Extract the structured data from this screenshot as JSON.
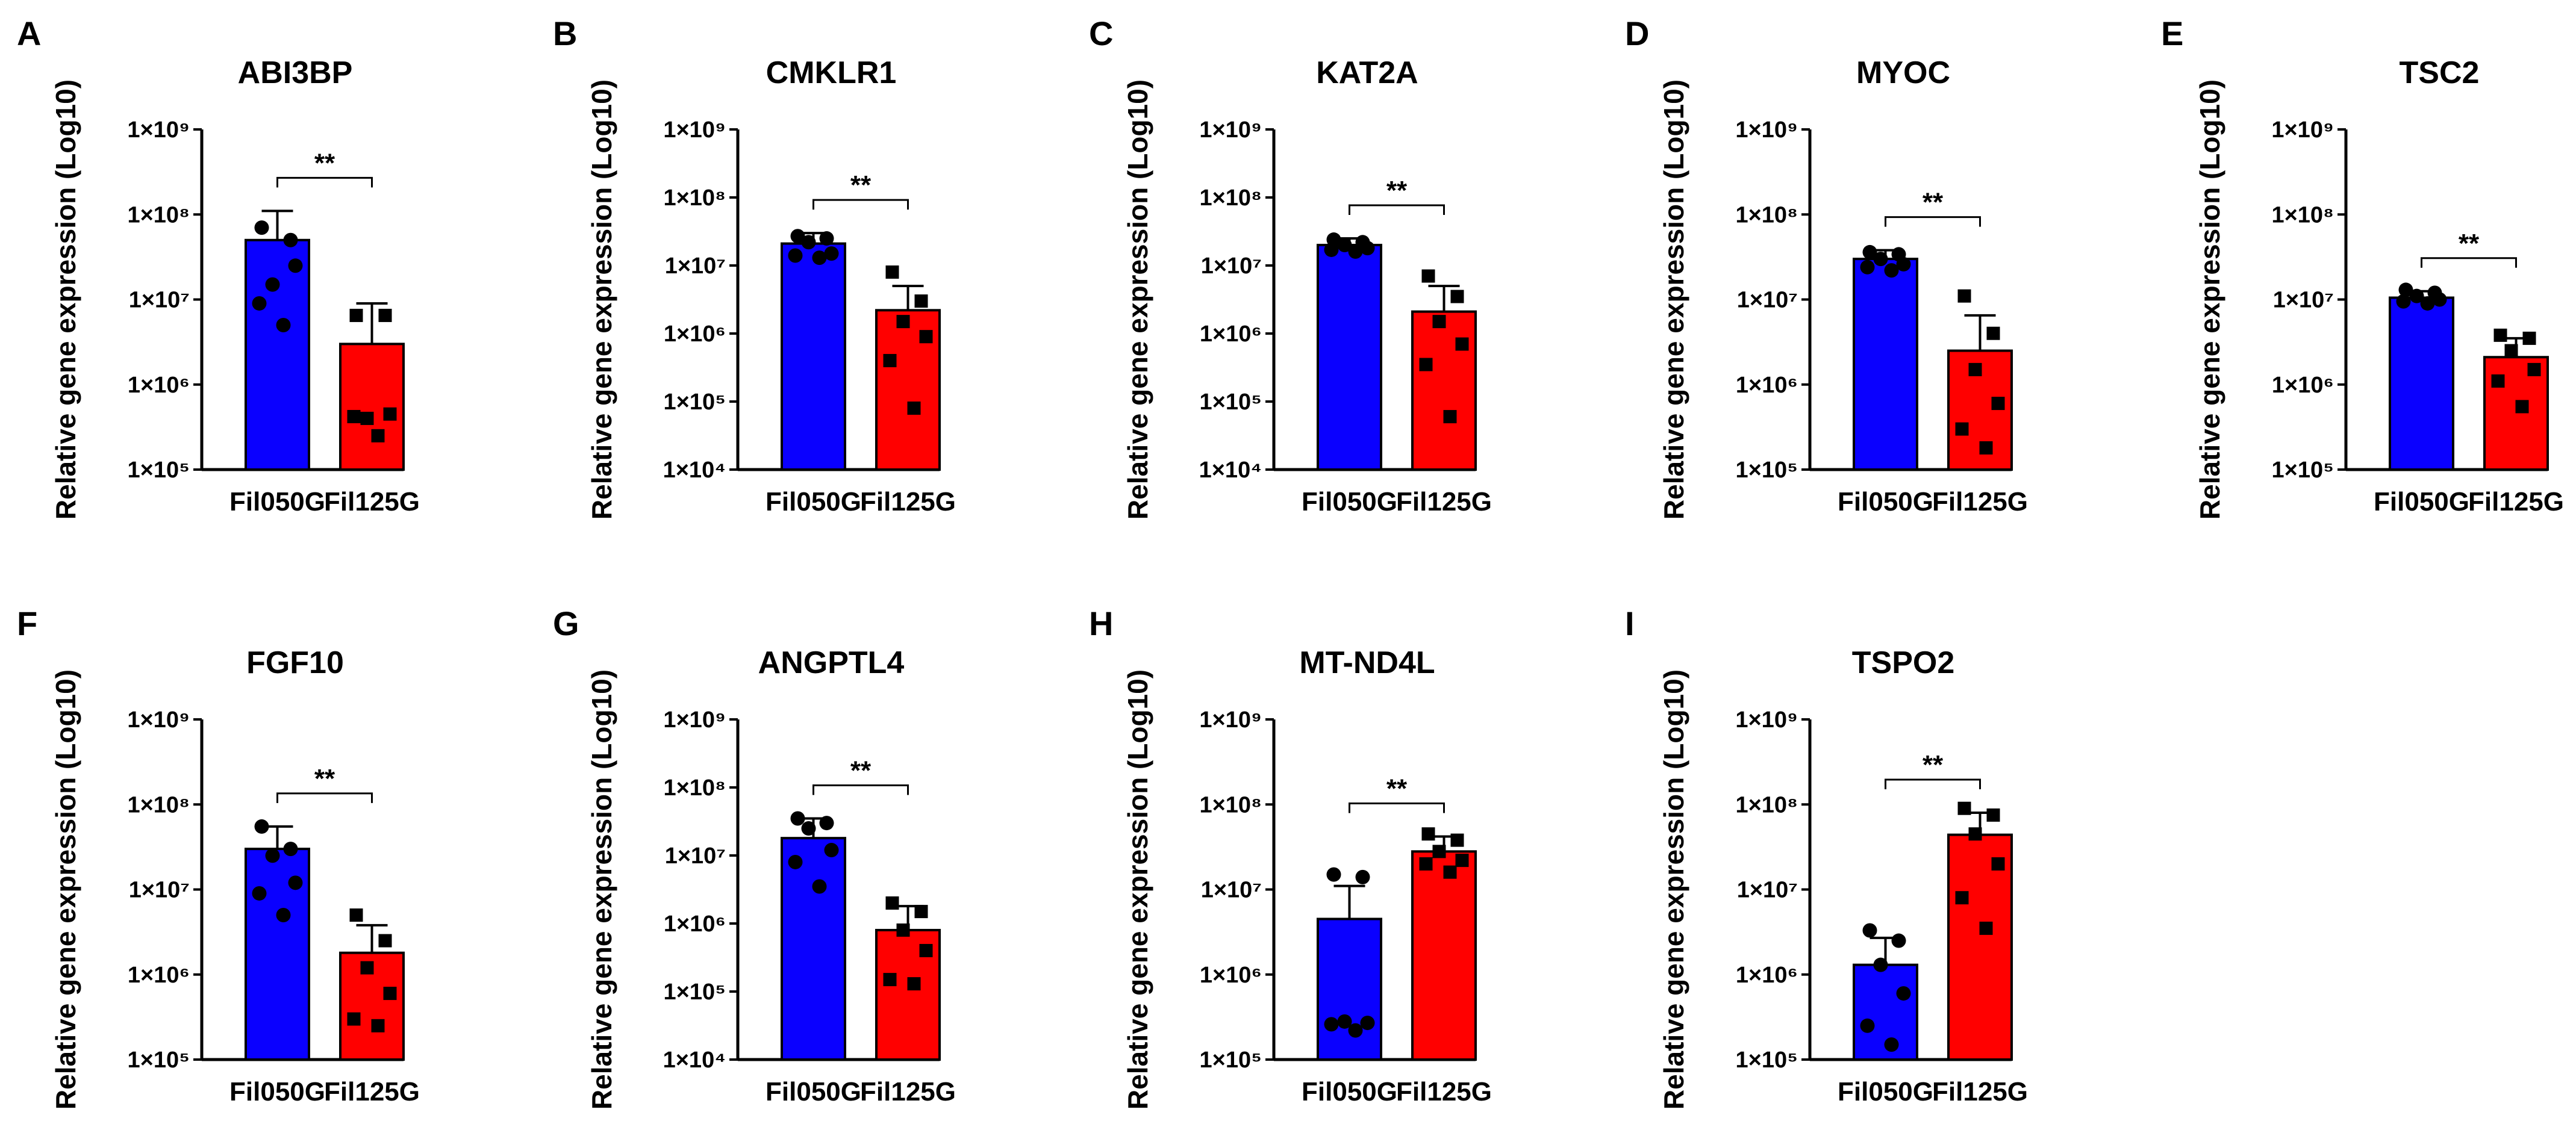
{
  "figure": {
    "ylabel": "Relative gene expression (Log10)",
    "categories": [
      "Fil050G",
      "Fil125G"
    ],
    "colors": {
      "Fil050G": "#0a00ff",
      "Fil125G": "#ff0000",
      "axis": "#000000"
    }
  },
  "chart_data": [
    {
      "type": "bar",
      "panel": "A",
      "title": "ABI3BP",
      "ylabel": "Relative gene expression (Log10)",
      "yscale": "log10",
      "ylim": [
        100000,
        1000000000
      ],
      "yticks": [
        "1×10⁵",
        "1×10⁶",
        "1×10⁷",
        "1×10⁸",
        "1×10⁹"
      ],
      "categories": [
        "Fil050G",
        "Fil125G"
      ],
      "series": [
        {
          "name": "Fil050G",
          "marker": "circle",
          "mean": 50000000,
          "sd_upper": 110000000,
          "points": [
            70000000,
            50000000,
            15000000,
            25000000,
            9000000,
            5000000
          ]
        },
        {
          "name": "Fil125G",
          "marker": "square",
          "mean": 3000000,
          "sd_upper": 9000000,
          "points": [
            6500000,
            6500000,
            400000,
            450000,
            420000,
            250000
          ]
        }
      ],
      "significance": "**"
    },
    {
      "type": "bar",
      "panel": "B",
      "title": "CMKLR1",
      "ylabel": "Relative gene expression (Log10)",
      "yscale": "log10",
      "ylim": [
        10000,
        1000000000
      ],
      "yticks": [
        "1×10⁴",
        "1×10⁵",
        "1×10⁶",
        "1×10⁷",
        "1×10⁸",
        "1×10⁹"
      ],
      "categories": [
        "Fil050G",
        "Fil125G"
      ],
      "series": [
        {
          "name": "Fil050G",
          "marker": "circle",
          "mean": 21000000,
          "sd_upper": 30000000,
          "points": [
            27000000,
            25000000,
            22000000,
            15000000,
            14000000,
            13000000
          ]
        },
        {
          "name": "Fil125G",
          "marker": "square",
          "mean": 2200000,
          "sd_upper": 5000000,
          "points": [
            8000000,
            3000000,
            1500000,
            900000,
            400000,
            80000
          ]
        }
      ],
      "significance": "**"
    },
    {
      "type": "bar",
      "panel": "C",
      "title": "KAT2A",
      "ylabel": "Relative gene expression (Log10)",
      "yscale": "log10",
      "ylim": [
        10000,
        1000000000
      ],
      "yticks": [
        "1×10⁴",
        "1×10⁵",
        "1×10⁶",
        "1×10⁷",
        "1×10⁸",
        "1×10⁹"
      ],
      "categories": [
        "Fil050G",
        "Fil125G"
      ],
      "series": [
        {
          "name": "Fil050G",
          "marker": "circle",
          "mean": 20000000,
          "sd_upper": 25000000,
          "points": [
            24000000,
            22000000,
            20000000,
            18000000,
            17000000,
            16000000
          ]
        },
        {
          "name": "Fil125G",
          "marker": "square",
          "mean": 2100000,
          "sd_upper": 5000000,
          "points": [
            7000000,
            3500000,
            1500000,
            700000,
            350000,
            60000
          ]
        }
      ],
      "significance": "**"
    },
    {
      "type": "bar",
      "panel": "D",
      "title": "MYOC",
      "ylabel": "Relative gene expression (Log10)",
      "yscale": "log10",
      "ylim": [
        100000,
        1000000000
      ],
      "yticks": [
        "1×10⁵",
        "1×10⁶",
        "1×10⁷",
        "1×10⁸",
        "1×10⁹"
      ],
      "categories": [
        "Fil050G",
        "Fil125G"
      ],
      "series": [
        {
          "name": "Fil050G",
          "marker": "circle",
          "mean": 30000000,
          "sd_upper": 38000000,
          "points": [
            36000000,
            34000000,
            30000000,
            26000000,
            24000000,
            22000000
          ]
        },
        {
          "name": "Fil125G",
          "marker": "square",
          "mean": 2500000,
          "sd_upper": 6500000,
          "points": [
            11000000,
            4000000,
            1500000,
            600000,
            300000,
            180000
          ]
        }
      ],
      "significance": "**"
    },
    {
      "type": "bar",
      "panel": "E",
      "title": "TSC2",
      "ylabel": "Relative gene expression (Log10)",
      "yscale": "log10",
      "ylim": [
        100000,
        1000000000
      ],
      "yticks": [
        "1×10⁵",
        "1×10⁶",
        "1×10⁷",
        "1×10⁸",
        "1×10⁹"
      ],
      "categories": [
        "Fil050G",
        "Fil125G"
      ],
      "series": [
        {
          "name": "Fil050G",
          "marker": "circle",
          "mean": 10500000,
          "sd_upper": 12500000,
          "points": [
            13000000,
            12000000,
            11000000,
            10000000,
            9500000,
            9000000
          ]
        },
        {
          "name": "Fil125G",
          "marker": "square",
          "mean": 2100000,
          "sd_upper": 3500000,
          "points": [
            3800000,
            3500000,
            2500000,
            1500000,
            1100000,
            550000
          ]
        }
      ],
      "significance": "**"
    },
    {
      "type": "bar",
      "panel": "F",
      "title": "FGF10",
      "ylabel": "Relative gene expression (Log10)",
      "yscale": "log10",
      "ylim": [
        100000,
        1000000000
      ],
      "yticks": [
        "1×10⁵",
        "1×10⁶",
        "1×10⁷",
        "1×10⁸",
        "1×10⁹"
      ],
      "categories": [
        "Fil050G",
        "Fil125G"
      ],
      "series": [
        {
          "name": "Fil050G",
          "marker": "circle",
          "mean": 30000000,
          "sd_upper": 55000000,
          "points": [
            55000000,
            30000000,
            25000000,
            12000000,
            9000000,
            5000000
          ]
        },
        {
          "name": "Fil125G",
          "marker": "square",
          "mean": 1800000,
          "sd_upper": 3800000,
          "points": [
            5000000,
            2500000,
            1200000,
            600000,
            300000,
            250000
          ]
        }
      ],
      "significance": "**"
    },
    {
      "type": "bar",
      "panel": "G",
      "title": "ANGPTL4",
      "ylabel": "Relative gene expression (Log10)",
      "yscale": "log10",
      "ylim": [
        10000,
        1000000000
      ],
      "yticks": [
        "1×10⁴",
        "1×10⁵",
        "1×10⁶",
        "1×10⁷",
        "1×10⁸",
        "1×10⁹"
      ],
      "categories": [
        "Fil050G",
        "Fil125G"
      ],
      "series": [
        {
          "name": "Fil050G",
          "marker": "circle",
          "mean": 18000000,
          "sd_upper": 35000000,
          "points": [
            35000000,
            30000000,
            25000000,
            12000000,
            8000000,
            3500000
          ]
        },
        {
          "name": "Fil125G",
          "marker": "square",
          "mean": 800000,
          "sd_upper": 1800000,
          "points": [
            2000000,
            1500000,
            800000,
            400000,
            150000,
            130000
          ]
        }
      ],
      "significance": "**"
    },
    {
      "type": "bar",
      "panel": "H",
      "title": "MT-ND4L",
      "ylabel": "Relative gene expression (Log10)",
      "yscale": "log10",
      "ylim": [
        100000,
        1000000000
      ],
      "yticks": [
        "1×10⁵",
        "1×10⁶",
        "1×10⁷",
        "1×10⁸",
        "1×10⁹"
      ],
      "categories": [
        "Fil050G",
        "Fil125G"
      ],
      "series": [
        {
          "name": "Fil050G",
          "marker": "circle",
          "mean": 4500000,
          "sd_upper": 11000000,
          "points": [
            15000000,
            14000000,
            280000,
            270000,
            260000,
            220000
          ]
        },
        {
          "name": "Fil125G",
          "marker": "square",
          "mean": 28000000,
          "sd_upper": 42000000,
          "points": [
            45000000,
            38000000,
            28000000,
            22000000,
            20000000,
            16000000
          ]
        }
      ],
      "significance": "**"
    },
    {
      "type": "bar",
      "panel": "I",
      "title": "TSPO2",
      "ylabel": "Relative gene expression (Log10)",
      "yscale": "log10",
      "ylim": [
        100000,
        1000000000
      ],
      "yticks": [
        "1×10⁵",
        "1×10⁶",
        "1×10⁷",
        "1×10⁸",
        "1×10⁹"
      ],
      "categories": [
        "Fil050G",
        "Fil125G"
      ],
      "series": [
        {
          "name": "Fil050G",
          "marker": "circle",
          "mean": 1300000,
          "sd_upper": 2700000,
          "points": [
            3300000,
            2500000,
            1300000,
            600000,
            250000,
            150000
          ]
        },
        {
          "name": "Fil125G",
          "marker": "square",
          "mean": 44000000,
          "sd_upper": 80000000,
          "points": [
            90000000,
            75000000,
            45000000,
            20000000,
            8000000,
            3500000
          ]
        }
      ],
      "significance": "**"
    }
  ]
}
